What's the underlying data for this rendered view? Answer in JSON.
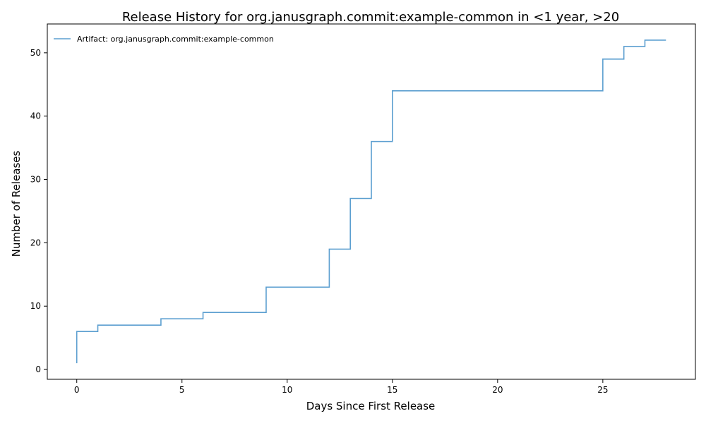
{
  "chart_data": {
    "type": "line",
    "title": "Release History for org.janusgraph.commit:example-common in <1 year, >20",
    "xlabel": "Days Since First Release",
    "ylabel": "Number of Releases",
    "xlim": [
      -1.4,
      29.4
    ],
    "ylim": [
      -1.55,
      54.55
    ],
    "xticks": [
      0,
      5,
      10,
      15,
      20,
      25
    ],
    "yticks": [
      0,
      10,
      20,
      30,
      40,
      50
    ],
    "grid": false,
    "legend_position": "top-left",
    "series": [
      {
        "name": "Artifact: org.janusgraph.commit:example-common",
        "color": "#5c9fd0",
        "step": "post",
        "x": [
          0,
          0,
          1,
          4,
          6,
          9,
          12,
          13,
          14,
          15,
          25,
          26,
          27,
          28
        ],
        "y": [
          1,
          6,
          7,
          8,
          9,
          13,
          19,
          27,
          36,
          44,
          49,
          51,
          52,
          52
        ]
      }
    ]
  }
}
